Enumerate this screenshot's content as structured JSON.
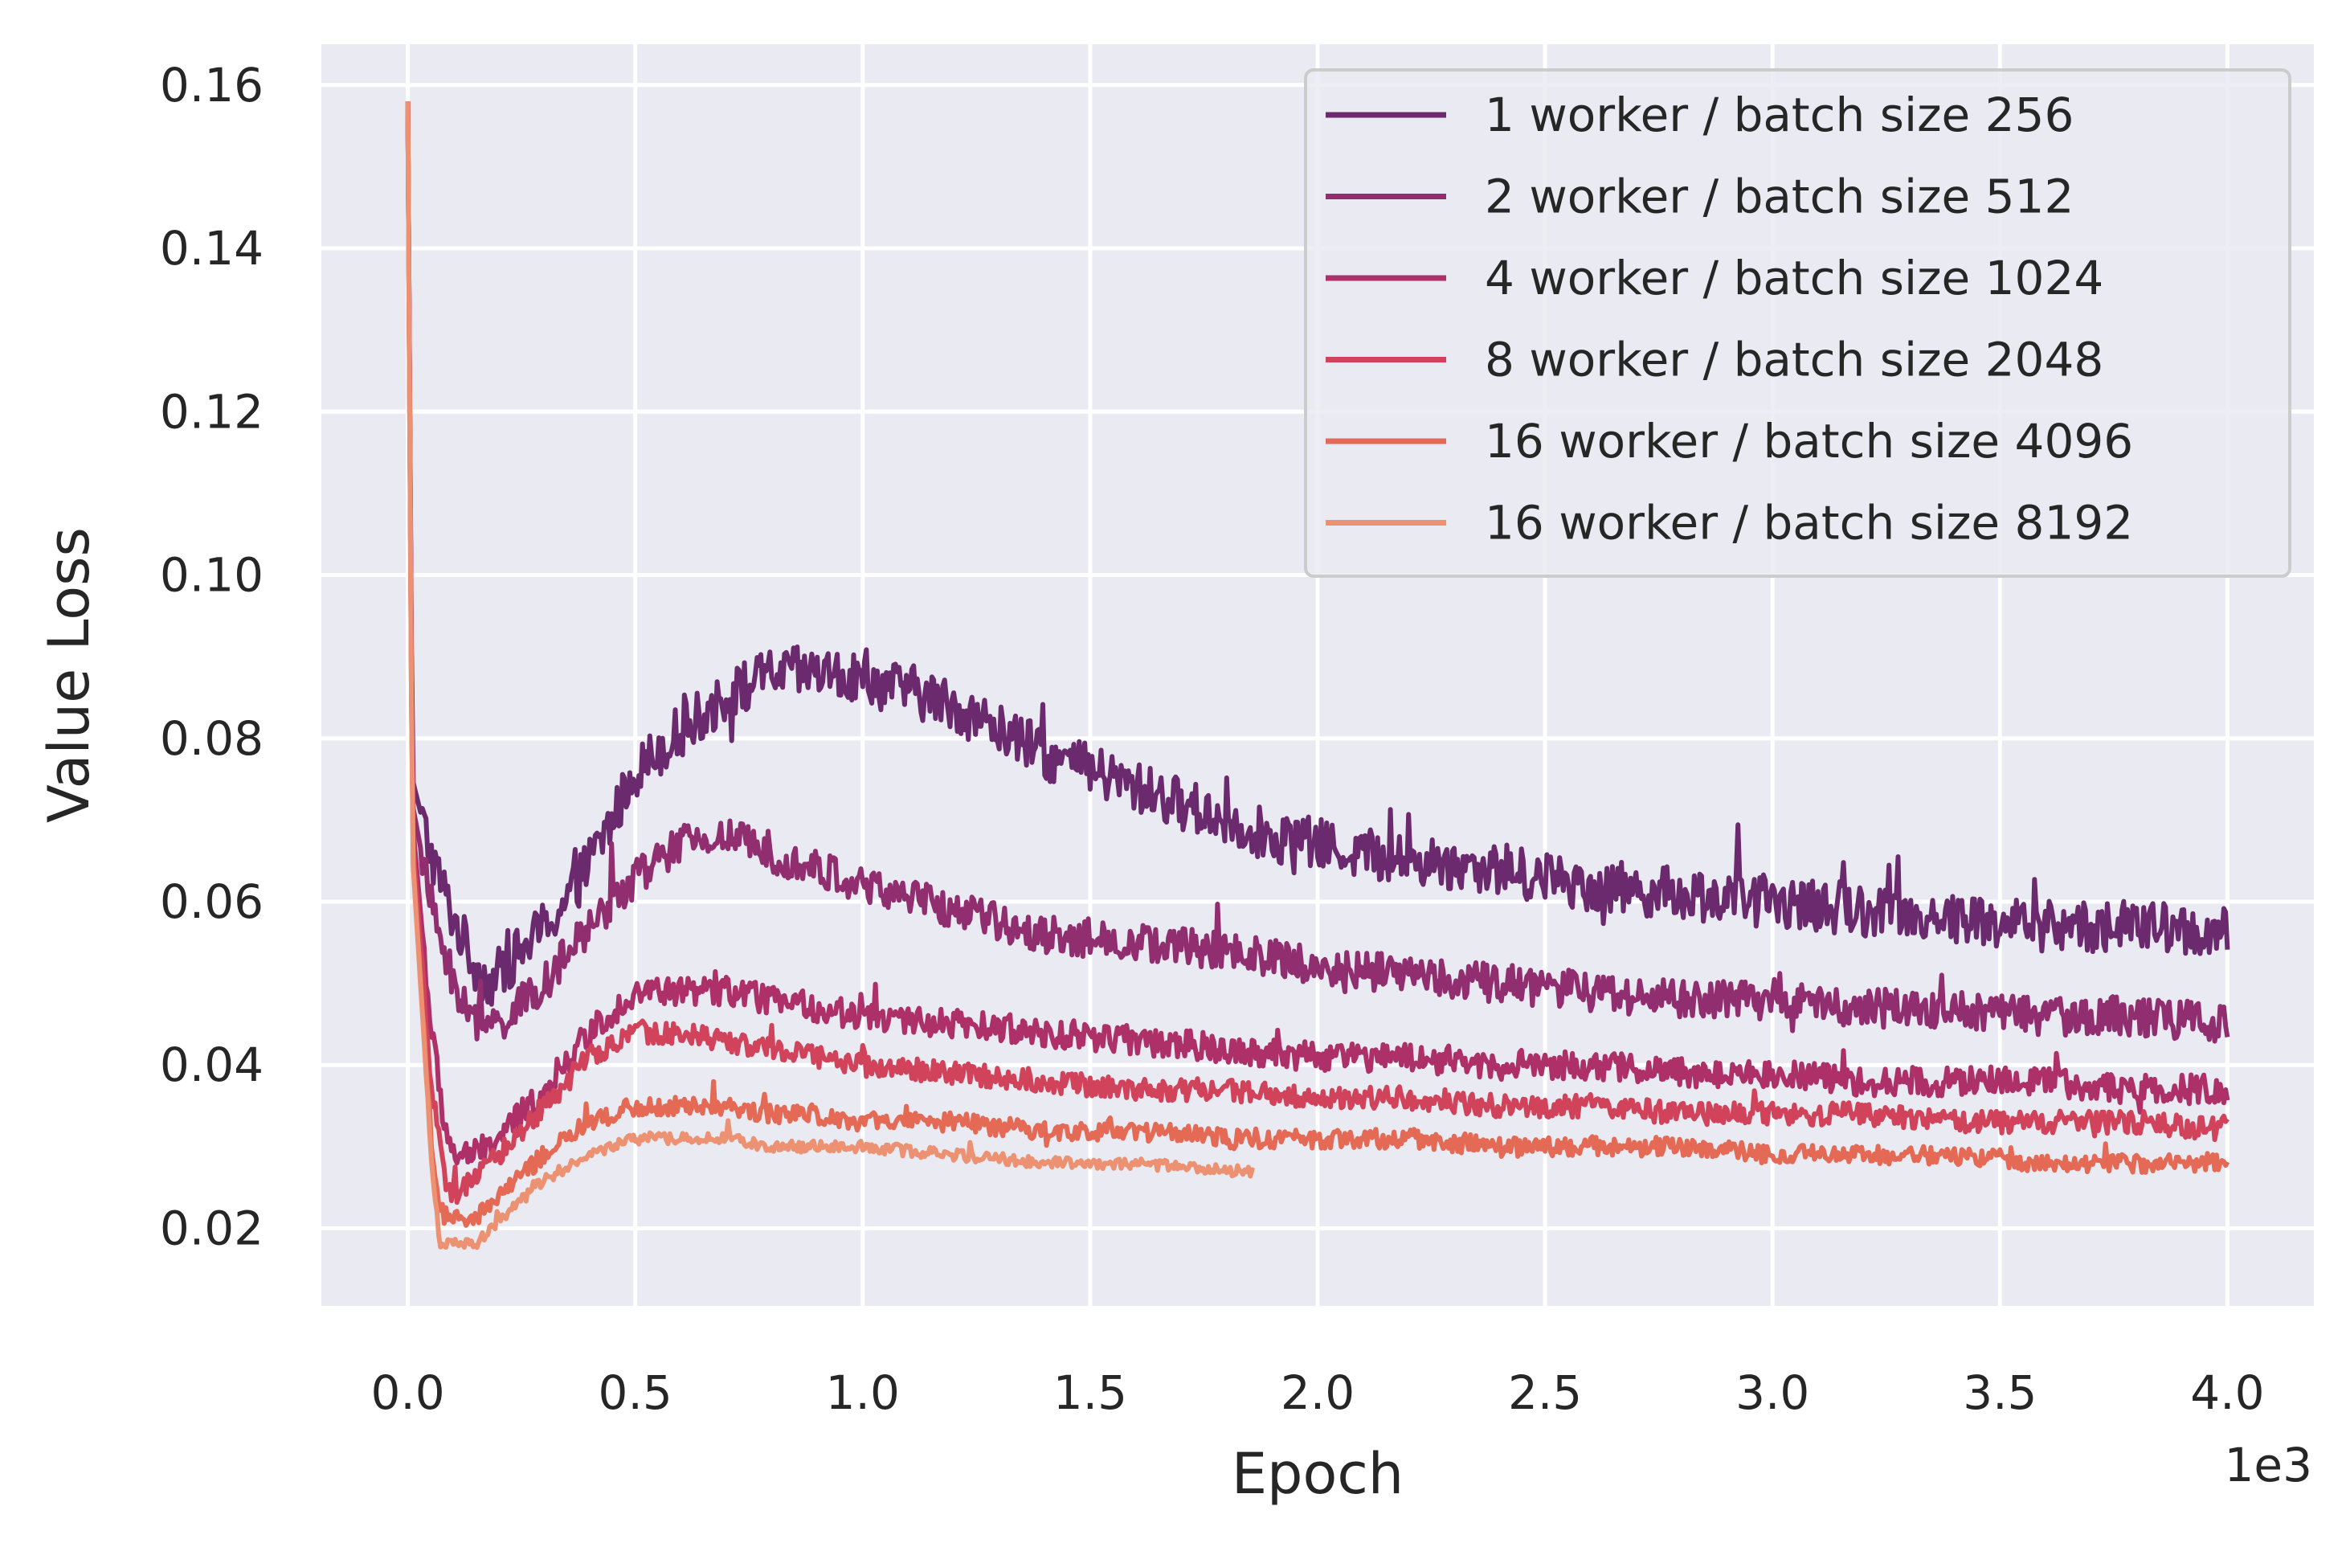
{
  "chart_data": {
    "type": "line",
    "xlabel": "Epoch",
    "ylabel": "Value Loss",
    "x_offset_label": "1e3",
    "xlim": [
      -0.19,
      4.19
    ],
    "ylim": [
      0.0105,
      0.165
    ],
    "xticks": [
      0.0,
      0.5,
      1.0,
      1.5,
      2.0,
      2.5,
      3.0,
      3.5,
      4.0
    ],
    "xtick_labels": [
      "0.0",
      "0.5",
      "1.0",
      "1.5",
      "2.0",
      "2.5",
      "3.0",
      "3.5",
      "4.0"
    ],
    "yticks": [
      0.02,
      0.04,
      0.06,
      0.08,
      0.1,
      0.12,
      0.14,
      0.16
    ],
    "ytick_labels": [
      "0.02",
      "0.04",
      "0.06",
      "0.08",
      "0.10",
      "0.12",
      "0.14",
      "0.16"
    ],
    "grid": true,
    "background": "#eaeaf2",
    "legend_position": "top-right",
    "series": [
      {
        "name": "1 worker / batch size 256",
        "color": "#6b2a6d",
        "noise": 0.0032,
        "points": [
          [
            0.0,
            0.158
          ],
          [
            0.01,
            0.075
          ],
          [
            0.05,
            0.066
          ],
          [
            0.1,
            0.058
          ],
          [
            0.15,
            0.052
          ],
          [
            0.18,
            0.05
          ],
          [
            0.25,
            0.054
          ],
          [
            0.35,
            0.06
          ],
          [
            0.45,
            0.07
          ],
          [
            0.5,
            0.076
          ],
          [
            0.6,
            0.081
          ],
          [
            0.7,
            0.085
          ],
          [
            0.8,
            0.088
          ],
          [
            0.9,
            0.088
          ],
          [
            1.0,
            0.087
          ],
          [
            1.1,
            0.086
          ],
          [
            1.2,
            0.084
          ],
          [
            1.3,
            0.081
          ],
          [
            1.4,
            0.078
          ],
          [
            1.5,
            0.076
          ],
          [
            1.6,
            0.074
          ],
          [
            1.7,
            0.072
          ],
          [
            1.8,
            0.07
          ],
          [
            1.9,
            0.068
          ],
          [
            2.0,
            0.067
          ],
          [
            2.2,
            0.065
          ],
          [
            2.4,
            0.064
          ],
          [
            2.6,
            0.062
          ],
          [
            2.8,
            0.061
          ],
          [
            3.0,
            0.06
          ],
          [
            3.2,
            0.059
          ],
          [
            3.4,
            0.058
          ],
          [
            3.6,
            0.057
          ],
          [
            3.8,
            0.057
          ],
          [
            4.0,
            0.056
          ]
        ]
      },
      {
        "name": "2 worker / batch size 512",
        "color": "#912e6f",
        "noise": 0.0024,
        "points": [
          [
            0.0,
            0.158
          ],
          [
            0.01,
            0.072
          ],
          [
            0.05,
            0.06
          ],
          [
            0.1,
            0.05
          ],
          [
            0.15,
            0.045
          ],
          [
            0.2,
            0.045
          ],
          [
            0.3,
            0.05
          ],
          [
            0.4,
            0.057
          ],
          [
            0.5,
            0.063
          ],
          [
            0.6,
            0.067
          ],
          [
            0.7,
            0.068
          ],
          [
            0.8,
            0.066
          ],
          [
            0.9,
            0.064
          ],
          [
            1.0,
            0.062
          ],
          [
            1.2,
            0.059
          ],
          [
            1.4,
            0.056
          ],
          [
            1.6,
            0.055
          ],
          [
            1.8,
            0.054
          ],
          [
            2.0,
            0.052
          ],
          [
            2.2,
            0.051
          ],
          [
            2.4,
            0.05
          ],
          [
            2.6,
            0.049
          ],
          [
            2.8,
            0.048
          ],
          [
            3.0,
            0.048
          ],
          [
            3.2,
            0.047
          ],
          [
            3.4,
            0.047
          ],
          [
            3.6,
            0.046
          ],
          [
            3.8,
            0.046
          ],
          [
            4.0,
            0.045
          ]
        ]
      },
      {
        "name": "4 worker / batch size 1024",
        "color": "#ad3068",
        "noise": 0.0018,
        "points": [
          [
            0.0,
            0.158
          ],
          [
            0.01,
            0.07
          ],
          [
            0.05,
            0.045
          ],
          [
            0.08,
            0.033
          ],
          [
            0.1,
            0.029
          ],
          [
            0.15,
            0.029
          ],
          [
            0.2,
            0.031
          ],
          [
            0.3,
            0.037
          ],
          [
            0.4,
            0.044
          ],
          [
            0.5,
            0.049
          ],
          [
            0.6,
            0.049
          ],
          [
            0.7,
            0.049
          ],
          [
            0.8,
            0.048
          ],
          [
            0.9,
            0.047
          ],
          [
            1.0,
            0.046
          ],
          [
            1.2,
            0.045
          ],
          [
            1.4,
            0.044
          ],
          [
            1.6,
            0.043
          ],
          [
            1.8,
            0.042
          ],
          [
            2.0,
            0.041
          ],
          [
            2.2,
            0.041
          ],
          [
            2.4,
            0.04
          ],
          [
            2.6,
            0.04
          ],
          [
            2.8,
            0.039
          ],
          [
            3.0,
            0.039
          ],
          [
            3.2,
            0.038
          ],
          [
            3.4,
            0.038
          ],
          [
            3.6,
            0.038
          ],
          [
            3.8,
            0.037
          ],
          [
            4.0,
            0.037
          ]
        ]
      },
      {
        "name": "8 worker / batch size 2048",
        "color": "#d1435b",
        "noise": 0.0014,
        "points": [
          [
            0.0,
            0.158
          ],
          [
            0.01,
            0.068
          ],
          [
            0.05,
            0.038
          ],
          [
            0.08,
            0.026
          ],
          [
            0.1,
            0.024
          ],
          [
            0.15,
            0.026
          ],
          [
            0.2,
            0.029
          ],
          [
            0.3,
            0.035
          ],
          [
            0.4,
            0.041
          ],
          [
            0.5,
            0.044
          ],
          [
            0.6,
            0.044
          ],
          [
            0.7,
            0.043
          ],
          [
            0.8,
            0.042
          ],
          [
            0.9,
            0.041
          ],
          [
            1.0,
            0.04
          ],
          [
            1.2,
            0.039
          ],
          [
            1.4,
            0.038
          ],
          [
            1.6,
            0.037
          ],
          [
            1.8,
            0.037
          ],
          [
            2.0,
            0.036
          ],
          [
            2.2,
            0.036
          ],
          [
            2.4,
            0.035
          ],
          [
            2.6,
            0.035
          ],
          [
            2.8,
            0.034
          ],
          [
            3.0,
            0.034
          ],
          [
            3.2,
            0.034
          ],
          [
            3.4,
            0.033
          ],
          [
            3.6,
            0.033
          ],
          [
            3.8,
            0.033
          ],
          [
            4.0,
            0.032
          ]
        ]
      },
      {
        "name": "16 worker / batch size 4096",
        "color": "#e46a55",
        "noise": 0.0012,
        "points": [
          [
            0.0,
            0.158
          ],
          [
            0.01,
            0.066
          ],
          [
            0.05,
            0.032
          ],
          [
            0.07,
            0.022
          ],
          [
            0.1,
            0.021
          ],
          [
            0.15,
            0.021
          ],
          [
            0.2,
            0.024
          ],
          [
            0.3,
            0.029
          ],
          [
            0.4,
            0.033
          ],
          [
            0.5,
            0.035
          ],
          [
            0.6,
            0.035
          ],
          [
            0.7,
            0.035
          ],
          [
            0.8,
            0.034
          ],
          [
            0.9,
            0.034
          ],
          [
            1.0,
            0.033
          ],
          [
            1.2,
            0.033
          ],
          [
            1.4,
            0.032
          ],
          [
            1.6,
            0.032
          ],
          [
            1.8,
            0.031
          ],
          [
            2.0,
            0.031
          ],
          [
            2.2,
            0.031
          ],
          [
            2.4,
            0.03
          ],
          [
            2.6,
            0.03
          ],
          [
            2.8,
            0.03
          ],
          [
            3.0,
            0.029
          ],
          [
            3.2,
            0.029
          ],
          [
            3.4,
            0.029
          ],
          [
            3.6,
            0.028
          ],
          [
            3.8,
            0.028
          ],
          [
            4.0,
            0.028
          ]
        ]
      },
      {
        "name": "16 worker / batch size 8192",
        "color": "#ec9273",
        "noise": 0.0007,
        "points": [
          [
            0.0,
            0.158
          ],
          [
            0.01,
            0.066
          ],
          [
            0.05,
            0.03
          ],
          [
            0.07,
            0.018
          ],
          [
            0.1,
            0.018
          ],
          [
            0.15,
            0.018
          ],
          [
            0.2,
            0.021
          ],
          [
            0.3,
            0.026
          ],
          [
            0.4,
            0.029
          ],
          [
            0.5,
            0.031
          ],
          [
            0.6,
            0.031
          ],
          [
            0.7,
            0.031
          ],
          [
            0.8,
            0.03
          ],
          [
            0.9,
            0.03
          ],
          [
            1.0,
            0.03
          ],
          [
            1.2,
            0.029
          ],
          [
            1.4,
            0.028
          ],
          [
            1.6,
            0.028
          ],
          [
            1.8,
            0.027
          ],
          [
            1.86,
            0.027
          ]
        ]
      }
    ]
  }
}
